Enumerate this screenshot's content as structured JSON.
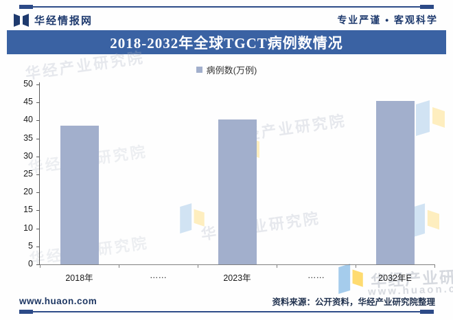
{
  "header": {
    "brand": "华经情报网",
    "slogan": "专业严谨 • 客观科学"
  },
  "title": "2018-2032年全球TGCT病例数情况",
  "legend": {
    "label": "病例数(万例)"
  },
  "chart_data": {
    "type": "bar",
    "title": "2018-2032年全球TGCT病例数情况",
    "categories": [
      "2018年",
      "……",
      "2023年",
      "……",
      "2032年E"
    ],
    "values": [
      38.6,
      null,
      40.3,
      null,
      45.5
    ],
    "xlabel": "",
    "ylabel": "病例数(万例)",
    "ylim": [
      0,
      50
    ],
    "ytick_step": 5,
    "yticks": [
      0,
      5,
      10,
      15,
      20,
      25,
      30,
      35,
      40,
      45,
      50
    ],
    "grid": false,
    "legend_position": "top-center",
    "bar_color": "#a2afcc"
  },
  "watermark": {
    "org": "华经产业研究院",
    "site": "www.huaon.com"
  },
  "footer": {
    "url": "www.huaon.com",
    "source": "资料来源：公开资料，华经产业研究院整理"
  },
  "colors": {
    "accent": "#3a62a3",
    "navy": "#1f3864",
    "bar": "#a2afcc",
    "rule": "#2c4a87"
  }
}
